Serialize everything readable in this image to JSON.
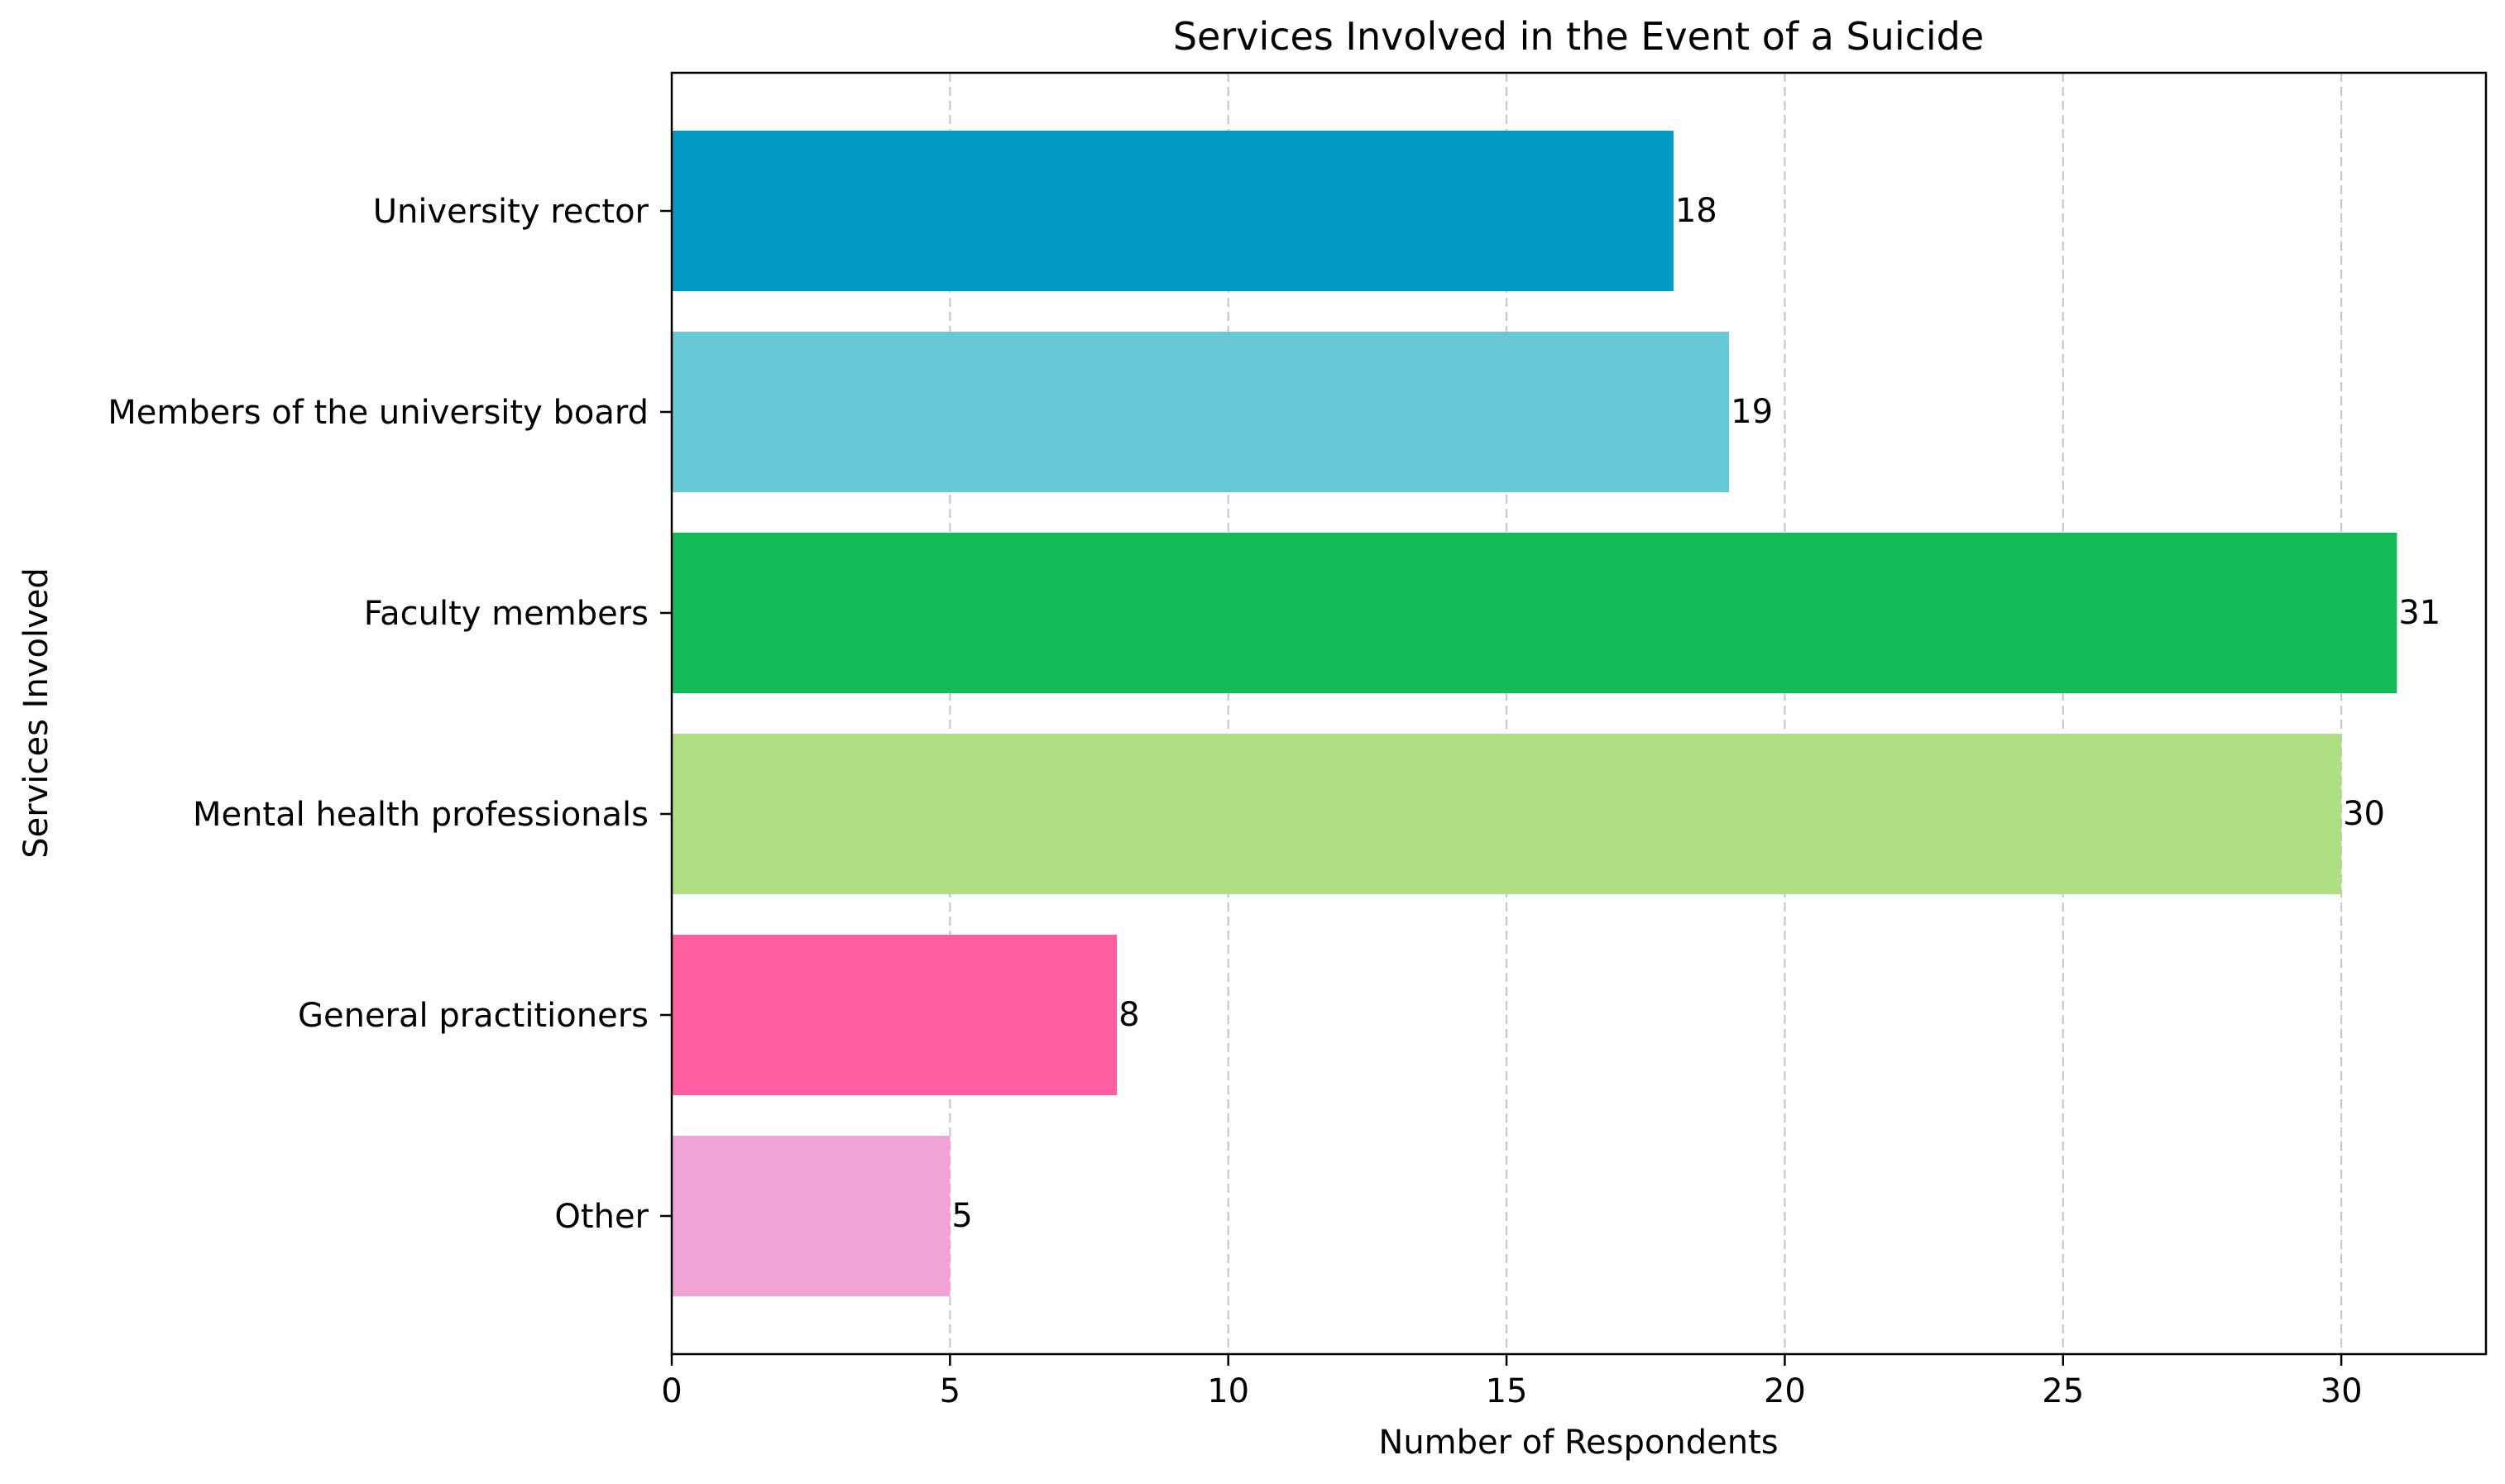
{
  "chart_data": {
    "type": "bar",
    "orientation": "horizontal",
    "title": "Services Involved in the Event of a Suicide",
    "xlabel": "Number of Respondents",
    "ylabel": "Services Involved",
    "categories": [
      "University rector",
      "Members of the university board",
      "Faculty members",
      "Mental health professionals",
      "General practitioners",
      "Other"
    ],
    "values": [
      18,
      19,
      31,
      30,
      8,
      5
    ],
    "value_labels": [
      "18",
      "19",
      "31",
      "30",
      "8",
      "5"
    ],
    "colors": [
      "#009ac2",
      "#67c8d6",
      "#12bb55",
      "#aee083",
      "#ff5fa0",
      "#f1a3d6"
    ],
    "xlim": [
      0,
      32.6
    ],
    "xticks": [
      0,
      5,
      10,
      15,
      20,
      25,
      30
    ],
    "xtick_labels": [
      "0",
      "5",
      "10",
      "15",
      "20",
      "25",
      "30"
    ],
    "grid": {
      "x": true,
      "y": false,
      "style": "dashed"
    }
  }
}
